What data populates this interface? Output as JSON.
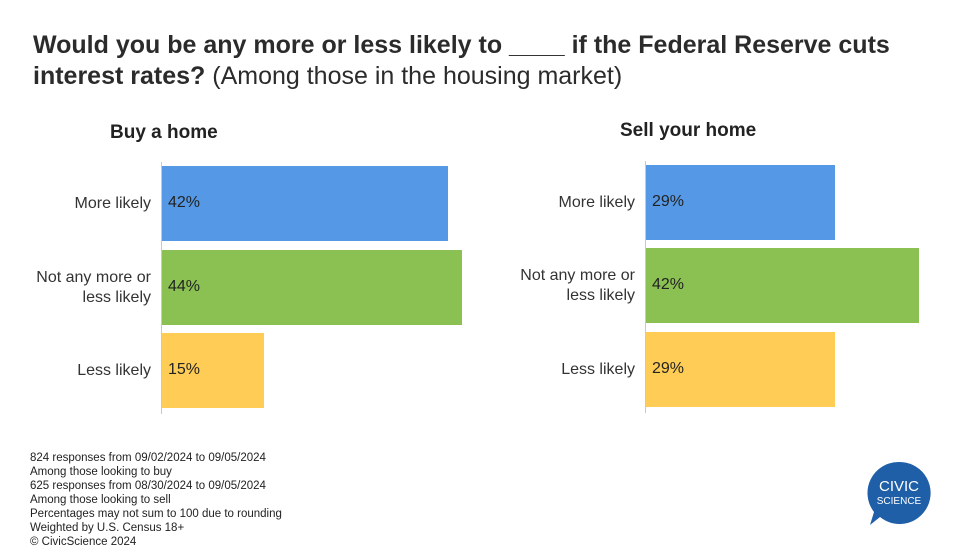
{
  "title": {
    "bold": "Would you be any more or less likely to ____ if the Federal Reserve cuts interest rates?",
    "rest": "(Among those in the housing market)"
  },
  "chart_data": [
    {
      "type": "bar",
      "orientation": "horizontal",
      "title": "Buy a home",
      "categories": [
        "More likely",
        "Not any more or less likely",
        "Less likely"
      ],
      "category_lines": [
        [
          "More likely"
        ],
        [
          "Not any more or",
          "less likely"
        ],
        [
          "Less likely"
        ]
      ],
      "values": [
        42,
        44,
        15
      ],
      "value_labels": [
        "42%",
        "44%",
        "15%"
      ],
      "colors": [
        "#5599e6",
        "#8bc152",
        "#ffcd55"
      ],
      "xlim": [
        0,
        44
      ],
      "grid": false
    },
    {
      "type": "bar",
      "orientation": "horizontal",
      "title": "Sell your home",
      "categories": [
        "More likely",
        "Not any more or less likely",
        "Less likely"
      ],
      "category_lines": [
        [
          "More likely"
        ],
        [
          "Not any more or",
          "less likely"
        ],
        [
          "Less likely"
        ]
      ],
      "values": [
        29,
        42,
        29
      ],
      "value_labels": [
        "29%",
        "42%",
        "29%"
      ],
      "colors": [
        "#5599e6",
        "#8bc152",
        "#ffcd55"
      ],
      "xlim": [
        0,
        42
      ],
      "grid": false
    }
  ],
  "notes": [
    "824 responses from 09/02/2024 to 09/05/2024",
    "Among those looking to buy",
    "625 responses from 08/30/2024 to 09/05/2024",
    "Among those looking to sell",
    "Percentages may not sum to 100 due to rounding",
    "Weighted by U.S. Census 18+",
    "© CivicScience 2024"
  ],
  "logo": {
    "line1": "CIVIC",
    "line2": "SCIENCE",
    "color": "#1e5fa8"
  }
}
